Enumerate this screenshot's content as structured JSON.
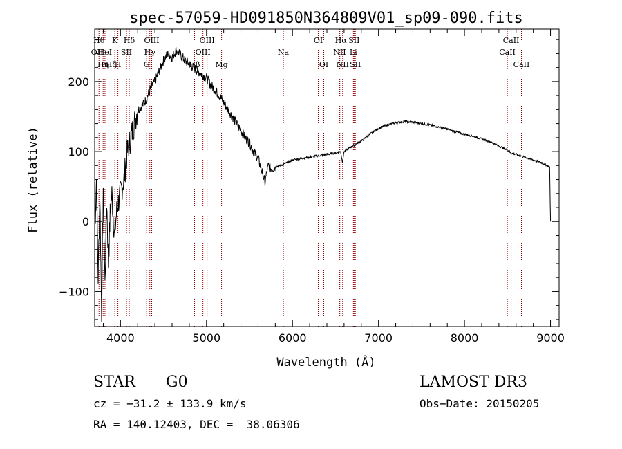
{
  "chart_data": {
    "type": "line",
    "title": "spec-57059-HD091850N364809V01_sp09-090.fits",
    "xlabel": "Wavelength (Å)",
    "ylabel": "Flux (relative)",
    "xlim": [
      3700,
      9100
    ],
    "ylim": [
      -150,
      275
    ],
    "x_ticks": [
      4000,
      5000,
      6000,
      7000,
      8000,
      9000
    ],
    "x_tick_labels": [
      "4000",
      "5000",
      "6000",
      "7000",
      "8000",
      "9000"
    ],
    "y_ticks": [
      -100,
      0,
      100,
      200
    ],
    "y_tick_labels": [
      "−100",
      "0",
      "100",
      "200"
    ],
    "grid": false,
    "series": [
      {
        "name": "flux",
        "color": "#000000",
        "x": [
          3700,
          3720,
          3740,
          3760,
          3780,
          3800,
          3820,
          3840,
          3860,
          3880,
          3900,
          3930,
          3960,
          4000,
          4040,
          4080,
          4120,
          4160,
          4200,
          4250,
          4300,
          4350,
          4400,
          4450,
          4500,
          4550,
          4600,
          4650,
          4700,
          4750,
          4800,
          4850,
          4900,
          4950,
          5000,
          5050,
          5100,
          5150,
          5200,
          5250,
          5300,
          5350,
          5400,
          5450,
          5500,
          5550,
          5600,
          5650,
          5680,
          5700,
          5720,
          5750,
          5800,
          5900,
          6000,
          6100,
          6200,
          6300,
          6400,
          6500,
          6560,
          6580,
          6600,
          6700,
          6800,
          6900,
          7000,
          7100,
          7200,
          7300,
          7400,
          7500,
          7600,
          7700,
          7800,
          7900,
          8000,
          8100,
          8200,
          8300,
          8400,
          8500,
          8540,
          8600,
          8700,
          8800,
          8900,
          8990,
          9000
        ],
        "y": [
          -20,
          60,
          -80,
          40,
          -130,
          50,
          -90,
          30,
          -60,
          10,
          40,
          -20,
          20,
          40,
          60,
          100,
          120,
          140,
          160,
          165,
          175,
          190,
          200,
          215,
          230,
          240,
          235,
          245,
          238,
          230,
          225,
          220,
          215,
          210,
          205,
          195,
          188,
          180,
          170,
          160,
          150,
          140,
          130,
          120,
          112,
          100,
          90,
          70,
          55,
          70,
          80,
          75,
          78,
          82,
          88,
          90,
          92,
          94,
          96,
          98,
          100,
          85,
          100,
          108,
          115,
          125,
          133,
          138,
          141,
          143,
          142,
          140,
          138,
          135,
          132,
          128,
          125,
          122,
          118,
          114,
          108,
          102,
          98,
          96,
          92,
          88,
          84,
          78,
          0
        ]
      }
    ],
    "lines": [
      {
        "x": 3728,
        "label": "OII",
        "row": 2
      },
      {
        "x": 3750,
        "label": "Hθ",
        "row": 1
      },
      {
        "x": 3798,
        "label": "Hη",
        "row": 3
      },
      {
        "x": 3820,
        "label": "HeI",
        "row": 2
      },
      {
        "x": 3889,
        "label": "Hζ",
        "row": 3
      },
      {
        "x": 3934,
        "label": "K",
        "row": 1
      },
      {
        "x": 3970,
        "label": "H",
        "row": 3
      },
      {
        "x": 4070,
        "label": "SII",
        "row": 2
      },
      {
        "x": 4102,
        "label": "Hδ",
        "row": 1
      },
      {
        "x": 4304,
        "label": "G",
        "row": 3
      },
      {
        "x": 4341,
        "label": "Hγ",
        "row": 2
      },
      {
        "x": 4363,
        "label": "OIII",
        "row": 1
      },
      {
        "x": 4861,
        "label": "Hβ",
        "row": 3
      },
      {
        "x": 4959,
        "label": "OIII",
        "row": 2
      },
      {
        "x": 5007,
        "label": "OIII",
        "row": 1
      },
      {
        "x": 5175,
        "label": "Mg",
        "row": 3
      },
      {
        "x": 5894,
        "label": "Na",
        "row": 2
      },
      {
        "x": 6300,
        "label": "OI",
        "row": 1
      },
      {
        "x": 6364,
        "label": "OI",
        "row": 3
      },
      {
        "x": 6548,
        "label": "NII",
        "row": 2
      },
      {
        "x": 6563,
        "label": "Hα",
        "row": 1
      },
      {
        "x": 6583,
        "label": "NII",
        "row": 3
      },
      {
        "x": 6708,
        "label": "Li",
        "row": 2
      },
      {
        "x": 6716,
        "label": "SII",
        "row": 1
      },
      {
        "x": 6731,
        "label": "SII",
        "row": 3
      },
      {
        "x": 8498,
        "label": "CaII",
        "row": 2
      },
      {
        "x": 8542,
        "label": "CaII",
        "row": 1
      },
      {
        "x": 8662,
        "label": "CaII",
        "row": 3
      }
    ],
    "line_color": "#8b0000"
  },
  "footer": {
    "class_label": "STAR",
    "subclass": "G0",
    "survey": "LAMOST DR3",
    "cz": "cz = −31.2 ± 133.9 km/s",
    "obs_date": "Obs−Date: 20150205",
    "coords": "RA = 140.12403, DEC =  38.06306"
  }
}
